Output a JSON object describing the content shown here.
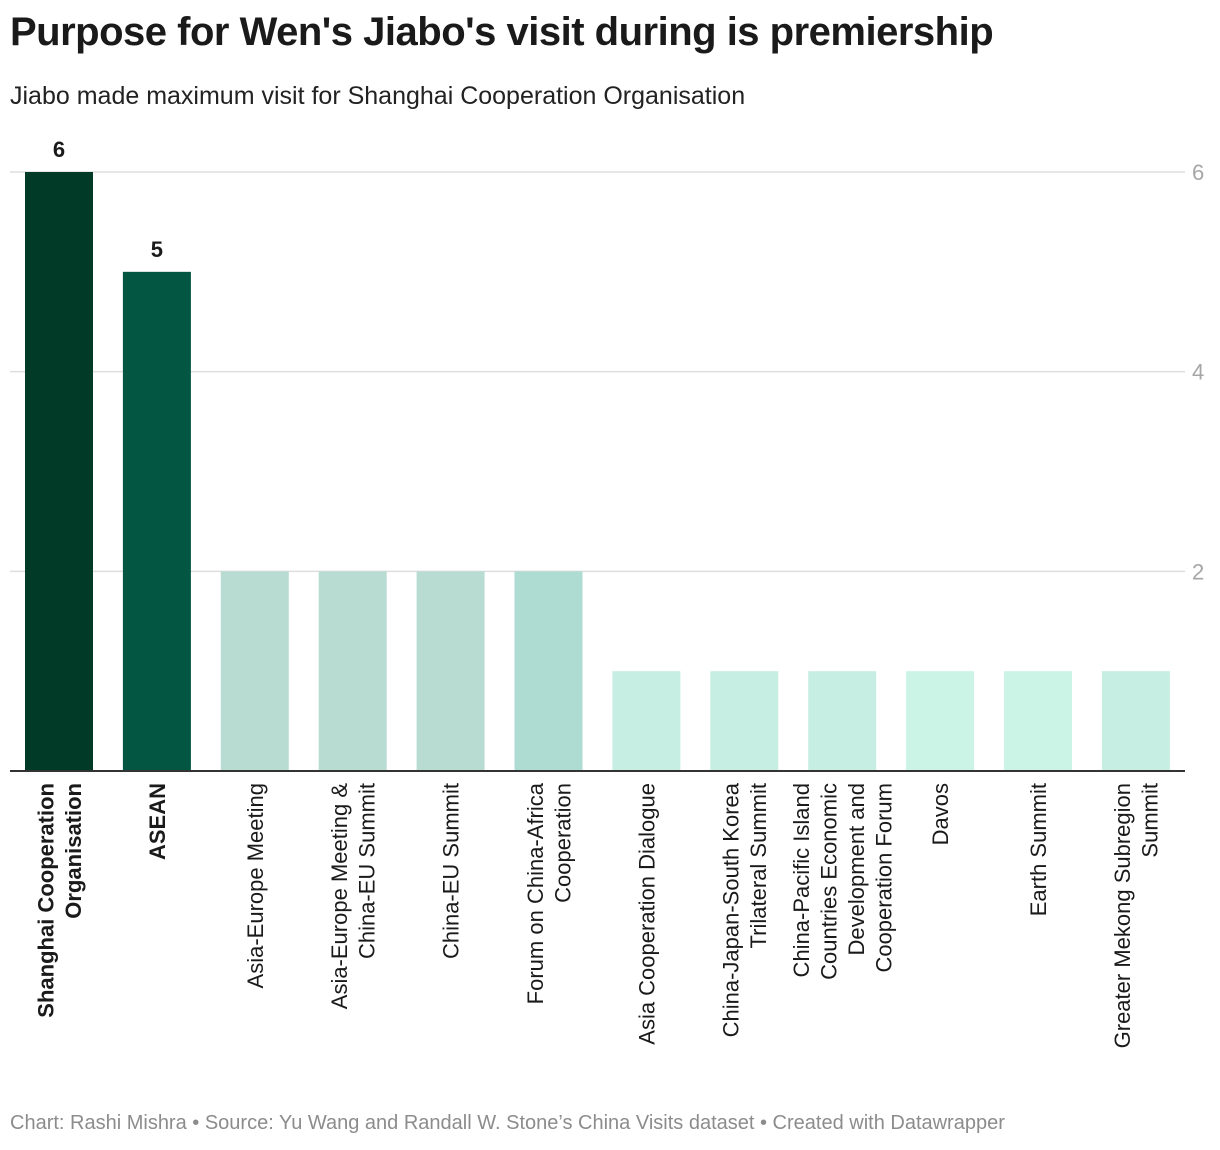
{
  "title": "Purpose for Wen's Jiabo's visit during is premiership",
  "subtitle": "Jiabo made maximum visit for Shanghai Cooperation Organisation",
  "footer": "Chart: Rashi Mishra • Source: Yu Wang and Randall W. Stone’s China Visits dataset • Created with Datawrapper",
  "chart_data": {
    "type": "bar",
    "categories": [
      "Shanghai Cooperation Organisation",
      "ASEAN",
      "Asia-Europe Meeting",
      "Asia-Europe Meeting & China-EU Summit",
      "China-EU Summit",
      "Forum on China-Africa Cooperation",
      "Asia Cooperation Dialogue",
      "China-Japan-South Korea Trilateral Summit",
      "China-Pacific Island Countries Economic Development and Cooperation Forum",
      "Davos",
      "Earth Summit",
      "Greater Mekong Subregion Summit"
    ],
    "category_label_lines": [
      [
        "Shanghai Cooperation",
        "Organisation"
      ],
      [
        "ASEAN"
      ],
      [
        "Asia-Europe Meeting"
      ],
      [
        "Asia-Europe Meeting &",
        "China-EU Summit"
      ],
      [
        "China-EU Summit"
      ],
      [
        "Forum on China-Africa",
        "Cooperation"
      ],
      [
        "Asia Cooperation Dialogue"
      ],
      [
        "China-Japan-South Korea",
        "Trilateral Summit"
      ],
      [
        "China-Pacific Island",
        "Countries Economic",
        "Development and",
        "Cooperation Forum"
      ],
      [
        "Davos"
      ],
      [
        "Earth Summit"
      ],
      [
        "Greater Mekong Subregion",
        "Summit"
      ]
    ],
    "values": [
      6,
      5,
      2,
      2,
      2,
      2,
      1,
      1,
      1,
      1,
      1,
      1
    ],
    "value_labels": [
      "6",
      "5",
      "",
      "",
      "",
      "",
      "",
      "",
      "",
      "",
      "",
      ""
    ],
    "bold_categories": [
      true,
      true,
      false,
      false,
      false,
      false,
      false,
      false,
      false,
      false,
      false,
      false
    ],
    "colors": [
      "#023a28",
      "#035641",
      "#b9dcd2",
      "#b9dcd2",
      "#b9dcd2",
      "#aedcd3",
      "#c7eee3",
      "#c7eee3",
      "#c7eee3",
      "#cbf3e6",
      "#cbf3e6",
      "#c7eee3"
    ],
    "yticks": [
      "2",
      "4",
      "6"
    ],
    "ylim": [
      0,
      6
    ],
    "y_axis_side": "right",
    "grid": true,
    "xlabel": "",
    "ylabel": ""
  }
}
